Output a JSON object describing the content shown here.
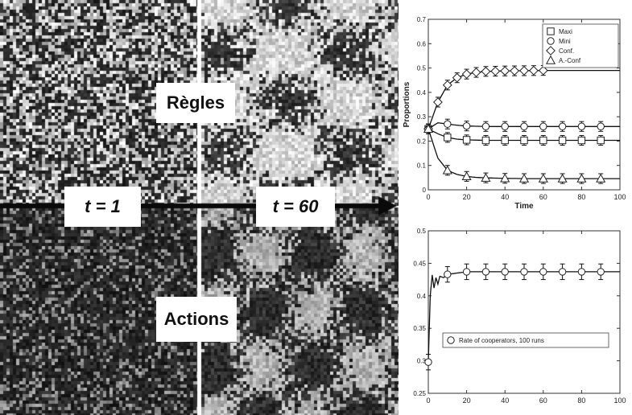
{
  "grid_panel": {
    "label_rules": "Règles",
    "label_actions": "Actions",
    "label_t1": "t = 1",
    "label_t60": "t = 60"
  },
  "chart_data": [
    {
      "type": "line",
      "title": "",
      "xlabel": "Time",
      "ylabel": "Proportions",
      "xlim": [
        0,
        100
      ],
      "ylim": [
        0,
        0.7
      ],
      "xticks": [
        0,
        20,
        40,
        60,
        80,
        100
      ],
      "yticks": [
        0,
        0.1,
        0.2,
        0.3,
        0.4,
        0.5,
        0.6,
        0.7
      ],
      "grid": false,
      "legend_position": "top-right",
      "error_bar": 0.02,
      "x": [
        0,
        5,
        10,
        15,
        20,
        25,
        30,
        40,
        50,
        60,
        70,
        80,
        90,
        100
      ],
      "series": [
        {
          "name": "Maxi",
          "marker": "square",
          "values": [
            0.25,
            0.23,
            0.215,
            0.208,
            0.205,
            0.204,
            0.203,
            0.203,
            0.203,
            0.203,
            0.203,
            0.203,
            0.203,
            0.203
          ],
          "marker_x": [
            0,
            10,
            20,
            30,
            40,
            50,
            60,
            70,
            80,
            90
          ]
        },
        {
          "name": "Mini",
          "marker": "circle",
          "values": [
            0.25,
            0.275,
            0.27,
            0.265,
            0.262,
            0.261,
            0.26,
            0.26,
            0.26,
            0.26,
            0.26,
            0.26,
            0.26,
            0.26
          ],
          "marker_x": [
            0,
            10,
            20,
            30,
            40,
            50,
            60,
            70,
            80,
            90
          ]
        },
        {
          "name": "Conf.",
          "marker": "diamond",
          "values": [
            0.25,
            0.36,
            0.43,
            0.46,
            0.475,
            0.482,
            0.486,
            0.488,
            0.489,
            0.49,
            0.49,
            0.49,
            0.49,
            0.49
          ],
          "marker_x": [
            0,
            5,
            10,
            15,
            20,
            25,
            30,
            35,
            40,
            45,
            50,
            55,
            60
          ]
        },
        {
          "name": "A.-Conf",
          "marker": "triangle",
          "values": [
            0.25,
            0.13,
            0.08,
            0.063,
            0.055,
            0.051,
            0.049,
            0.047,
            0.046,
            0.046,
            0.046,
            0.046,
            0.046,
            0.046
          ],
          "marker_x": [
            0,
            10,
            20,
            30,
            40,
            50,
            60,
            70,
            80,
            90
          ]
        }
      ]
    },
    {
      "type": "line",
      "title": "",
      "xlabel": "",
      "ylabel": "",
      "xlim": [
        0,
        100
      ],
      "ylim": [
        0.25,
        0.5
      ],
      "xticks": [
        0,
        20,
        40,
        60,
        80,
        100
      ],
      "yticks": [
        0.25,
        0.3,
        0.35,
        0.4,
        0.45,
        0.5
      ],
      "grid": false,
      "legend_position": "lower-center",
      "error_bar": 0.012,
      "x": [
        0,
        1,
        2,
        3,
        4,
        5,
        6,
        8,
        10,
        15,
        20,
        30,
        40,
        60,
        80,
        100
      ],
      "series": [
        {
          "name": "Rate of cooperators, 100 runs",
          "marker": "circle",
          "values": [
            0.298,
            0.4,
            0.432,
            0.412,
            0.428,
            0.418,
            0.43,
            0.428,
            0.433,
            0.435,
            0.437,
            0.437,
            0.437,
            0.437,
            0.437,
            0.437
          ],
          "marker_x": [
            0,
            10,
            20,
            30,
            40,
            50,
            60,
            70,
            80,
            90
          ]
        }
      ]
    }
  ]
}
